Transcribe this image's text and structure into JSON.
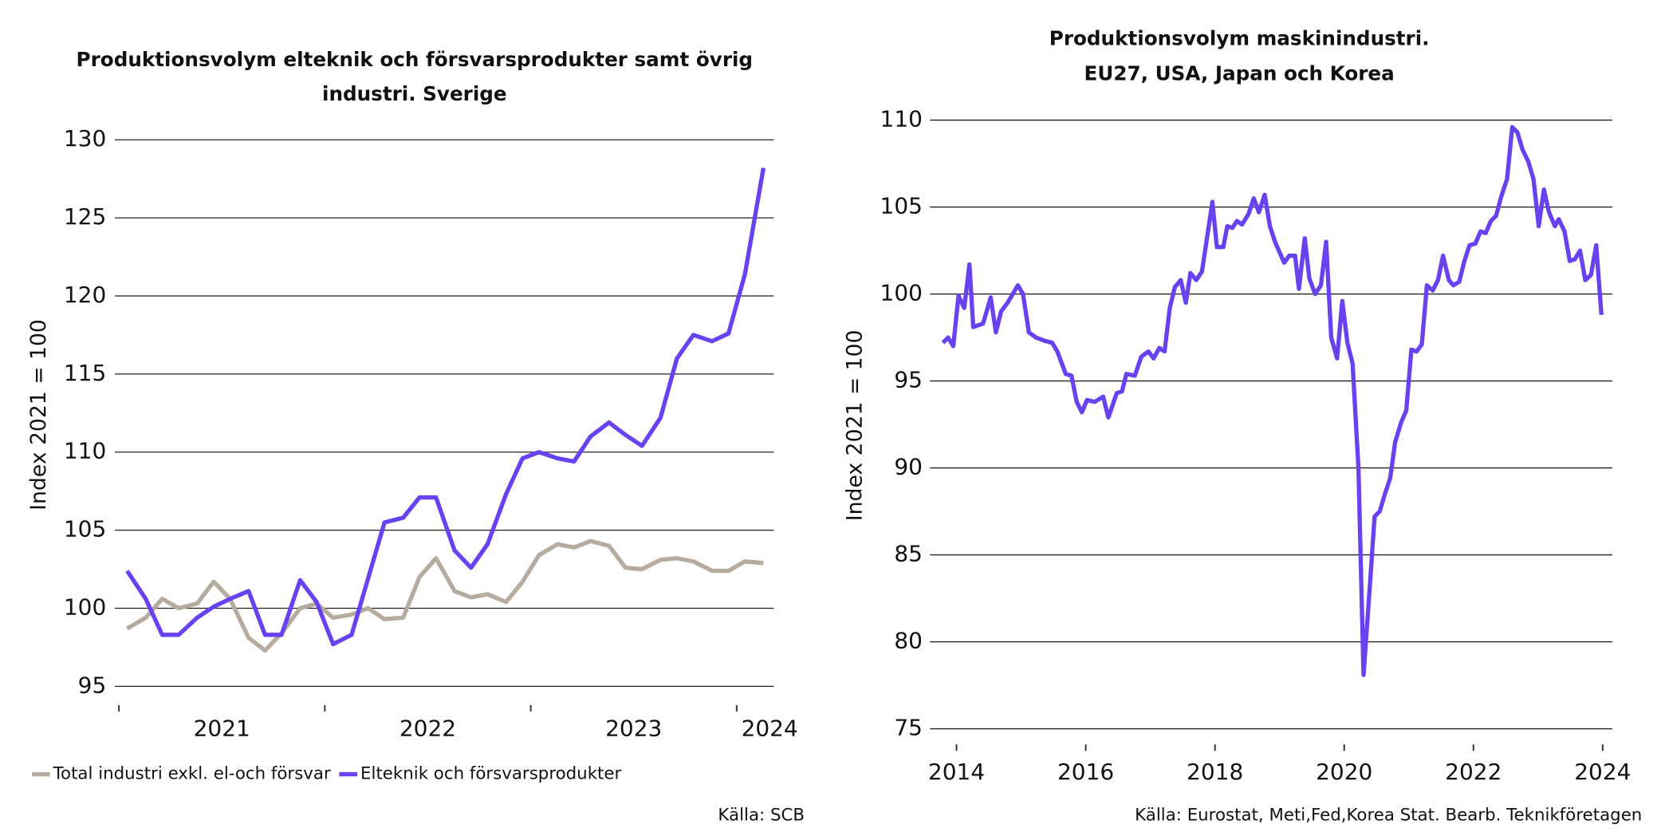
{
  "chart_data": [
    {
      "type": "line",
      "title": [
        "Produktionsvolym elteknik och försvarsprodukter samt övrig",
        "industri. Sverige"
      ],
      "ylabel": "Index 2021 = 100",
      "source": "Källa: SCB",
      "legend": "bottom-left",
      "grid": true,
      "xlim": [
        2020.98,
        2024.18
      ],
      "ylim": [
        93.8,
        130.5
      ],
      "yticks": [
        95,
        100,
        105,
        110,
        115,
        120,
        125,
        130
      ],
      "xticks": [
        {
          "value": 2021.5,
          "label": "2021"
        },
        {
          "value": 2022.5,
          "label": "2022"
        },
        {
          "value": 2023.5,
          "label": "2023"
        },
        {
          "value": 2024.16,
          "label": "2024"
        }
      ],
      "x": [
        2021.04,
        2021.13,
        2021.21,
        2021.29,
        2021.38,
        2021.46,
        2021.54,
        2021.63,
        2021.71,
        2021.79,
        2021.88,
        2021.96,
        2022.04,
        2022.13,
        2022.21,
        2022.29,
        2022.38,
        2022.46,
        2022.54,
        2022.63,
        2022.71,
        2022.79,
        2022.88,
        2022.96,
        2023.04,
        2023.13,
        2023.21,
        2023.29,
        2023.38,
        2023.46,
        2023.54,
        2023.63,
        2023.71,
        2023.79,
        2023.88,
        2023.96,
        2024.04,
        2024.13
      ],
      "series": [
        {
          "name": "Total industri exkl. el-och försvar",
          "color": "#b5ab9e",
          "values": [
            98.7,
            99.4,
            100.6,
            100.0,
            100.3,
            101.7,
            100.6,
            98.1,
            97.3,
            98.4,
            100.0,
            100.3,
            99.4,
            99.6,
            100.0,
            99.3,
            99.4,
            102.0,
            103.2,
            101.1,
            100.7,
            100.9,
            100.4,
            101.7,
            103.4,
            104.1,
            103.9,
            104.3,
            104.0,
            102.6,
            102.5,
            103.1,
            103.2,
            103.0,
            102.4,
            102.4,
            103.0,
            102.9
          ]
        },
        {
          "name": "Elteknik och försvarsprodukter",
          "color": "#6842ef",
          "values": [
            102.4,
            100.6,
            98.3,
            98.3,
            99.4,
            100.1,
            100.6,
            101.1,
            98.3,
            98.3,
            101.8,
            100.4,
            97.7,
            98.3,
            101.9,
            105.5,
            105.8,
            107.1,
            107.1,
            103.7,
            102.6,
            104.1,
            107.3,
            109.6,
            110.0,
            109.6,
            109.4,
            111.0,
            111.9,
            111.1,
            110.4,
            112.2,
            116.0,
            117.5,
            117.1,
            117.6,
            121.4,
            128.2
          ]
        }
      ]
    },
    {
      "type": "line",
      "title": [
        "Produktionsvolym maskinindustri.",
        "EU27, USA, Japan och Korea"
      ],
      "ylabel": "Index 2021 = 100",
      "source": "Källa: Eurostat, Meti,Fed,Korea Stat. Bearb. Teknikföretagen",
      "grid": true,
      "xlim": [
        2013.59,
        2024.15
      ],
      "ylim": [
        74.1,
        110.6
      ],
      "yticks": [
        75,
        80,
        85,
        90,
        95,
        100,
        105,
        110
      ],
      "xticks": [
        2014,
        2016,
        2018,
        2020,
        2022,
        2024
      ],
      "x": [
        2013.79,
        2013.87,
        2013.95,
        2014.03,
        2014.12,
        2014.2,
        2014.26,
        2014.41,
        2014.53,
        2014.61,
        2014.69,
        2014.79,
        2014.95,
        2015.03,
        2015.12,
        2015.23,
        2015.37,
        2015.48,
        2015.56,
        2015.69,
        2015.78,
        2015.86,
        2015.94,
        2016.02,
        2016.14,
        2016.27,
        2016.35,
        2016.48,
        2016.56,
        2016.63,
        2016.76,
        2016.86,
        2016.97,
        2017.05,
        2017.14,
        2017.22,
        2017.3,
        2017.38,
        2017.47,
        2017.55,
        2017.62,
        2017.71,
        2017.8,
        2017.88,
        2017.96,
        2018.03,
        2018.13,
        2018.19,
        2018.27,
        2018.34,
        2018.42,
        2018.52,
        2018.6,
        2018.68,
        2018.77,
        2018.85,
        2018.93,
        2019.07,
        2019.15,
        2019.24,
        2019.3,
        2019.39,
        2019.46,
        2019.55,
        2019.64,
        2019.72,
        2019.8,
        2019.89,
        2019.97,
        2020.05,
        2020.13,
        2020.22,
        2020.3,
        2020.38,
        2020.47,
        2020.55,
        2020.63,
        2020.71,
        2020.79,
        2020.88,
        2020.96,
        2021.04,
        2021.12,
        2021.2,
        2021.28,
        2021.37,
        2021.45,
        2021.53,
        2021.62,
        2021.69,
        2021.78,
        2021.86,
        2021.94,
        2022.03,
        2022.11,
        2022.19,
        2022.27,
        2022.35,
        2022.43,
        2022.52,
        2022.6,
        2022.68,
        2022.76,
        2022.85,
        2022.93,
        2023.01,
        2023.09,
        2023.17,
        2023.26,
        2023.32,
        2023.41,
        2023.49,
        2023.57,
        2023.65,
        2023.73,
        2023.82,
        2023.9,
        2023.98
      ],
      "series": [
        {
          "name": "Maskinindustri",
          "color": "#6842ef",
          "values": [
            97.2,
            97.5,
            97.0,
            99.9,
            99.2,
            101.7,
            98.1,
            98.3,
            99.8,
            97.8,
            99.0,
            99.5,
            100.5,
            100.0,
            97.8,
            97.5,
            97.3,
            97.2,
            96.7,
            95.4,
            95.3,
            93.8,
            93.2,
            93.9,
            93.8,
            94.1,
            92.9,
            94.3,
            94.4,
            95.4,
            95.3,
            96.4,
            96.7,
            96.3,
            96.9,
            96.7,
            99.2,
            100.4,
            100.8,
            99.5,
            101.2,
            100.8,
            101.3,
            103.3,
            105.3,
            102.7,
            102.7,
            103.9,
            103.8,
            104.2,
            104.0,
            104.6,
            105.5,
            104.7,
            105.7,
            103.9,
            103.0,
            101.8,
            102.2,
            102.2,
            100.3,
            103.2,
            100.9,
            100.0,
            100.5,
            103.0,
            97.5,
            96.3,
            99.6,
            97.2,
            96.0,
            90.0,
            78.1,
            82.3,
            87.2,
            87.5,
            88.5,
            89.4,
            91.5,
            92.6,
            93.3,
            96.8,
            96.7,
            97.1,
            100.5,
            100.2,
            100.8,
            102.2,
            100.8,
            100.5,
            100.7,
            101.9,
            102.8,
            102.9,
            103.6,
            103.5,
            104.2,
            104.5,
            105.6,
            106.6,
            109.6,
            109.3,
            108.3,
            107.6,
            106.6,
            103.9,
            106.0,
            104.7,
            103.9,
            104.3,
            103.6,
            101.9,
            102.0,
            102.5,
            100.8,
            101.1,
            102.8,
            98.8
          ]
        }
      ]
    }
  ]
}
